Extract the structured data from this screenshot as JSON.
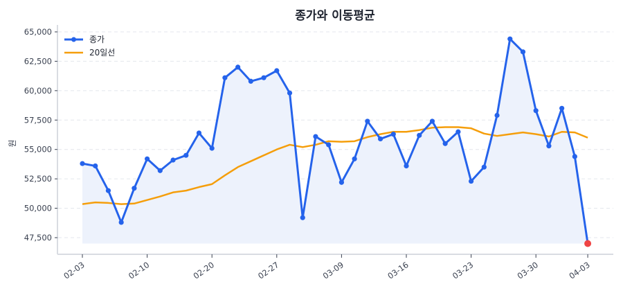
{
  "chart_data": {
    "type": "line",
    "title": "종가와 이동평균",
    "xlabel": "",
    "ylabel": "원",
    "ylim": [
      46300,
      65400
    ],
    "yticks": [
      47500,
      50000,
      52500,
      55000,
      57500,
      60000,
      62500,
      65000
    ],
    "ytick_labels": [
      "47,500",
      "50,000",
      "52,500",
      "55,000",
      "57,500",
      "60,000",
      "62,500",
      "65,000"
    ],
    "xtick_labels": [
      {
        "index": 0,
        "label": "02-03"
      },
      {
        "index": 5,
        "label": "02-10"
      },
      {
        "index": 10,
        "label": "02-20"
      },
      {
        "index": 15,
        "label": "02-27"
      },
      {
        "index": 20,
        "label": "03-09"
      },
      {
        "index": 25,
        "label": "03-16"
      },
      {
        "index": 30,
        "label": "03-23"
      },
      {
        "index": 35,
        "label": "03-30"
      },
      {
        "index": 39,
        "label": "04-03"
      }
    ],
    "grid": true,
    "legend_position": "upper left",
    "series": [
      {
        "name": "종가",
        "color": "#2563eb",
        "marker": true,
        "fill_below": true,
        "fill_color": "#edf2fc",
        "values": [
          53800,
          53600,
          51500,
          48800,
          51700,
          54200,
          53200,
          54100,
          54500,
          56400,
          55100,
          61100,
          62000,
          60800,
          61100,
          61700,
          59800,
          49200,
          56100,
          55400,
          52200,
          54200,
          57400,
          55900,
          56300,
          53600,
          56200,
          57400,
          55500,
          56500,
          52300,
          53500,
          57900,
          64400,
          63300,
          58300,
          55300,
          58500,
          54400,
          47000
        ]
      },
      {
        "name": "20일선",
        "color": "#f59e0b",
        "marker": false,
        "values": [
          50350,
          50500,
          50450,
          50350,
          50400,
          50700,
          51000,
          51350,
          51500,
          51800,
          52050,
          52800,
          53500,
          54000,
          54500,
          55000,
          55400,
          55200,
          55400,
          55700,
          55650,
          55700,
          56050,
          56300,
          56500,
          56500,
          56650,
          56850,
          56900,
          56900,
          56800,
          56350,
          56150,
          56300,
          56450,
          56300,
          56100,
          56500,
          56450,
          56000
        ]
      }
    ],
    "annotations": [
      {
        "type": "marker",
        "index": 39,
        "value": 47000,
        "color": "#ef4444",
        "note": "last close highlighted"
      }
    ]
  }
}
